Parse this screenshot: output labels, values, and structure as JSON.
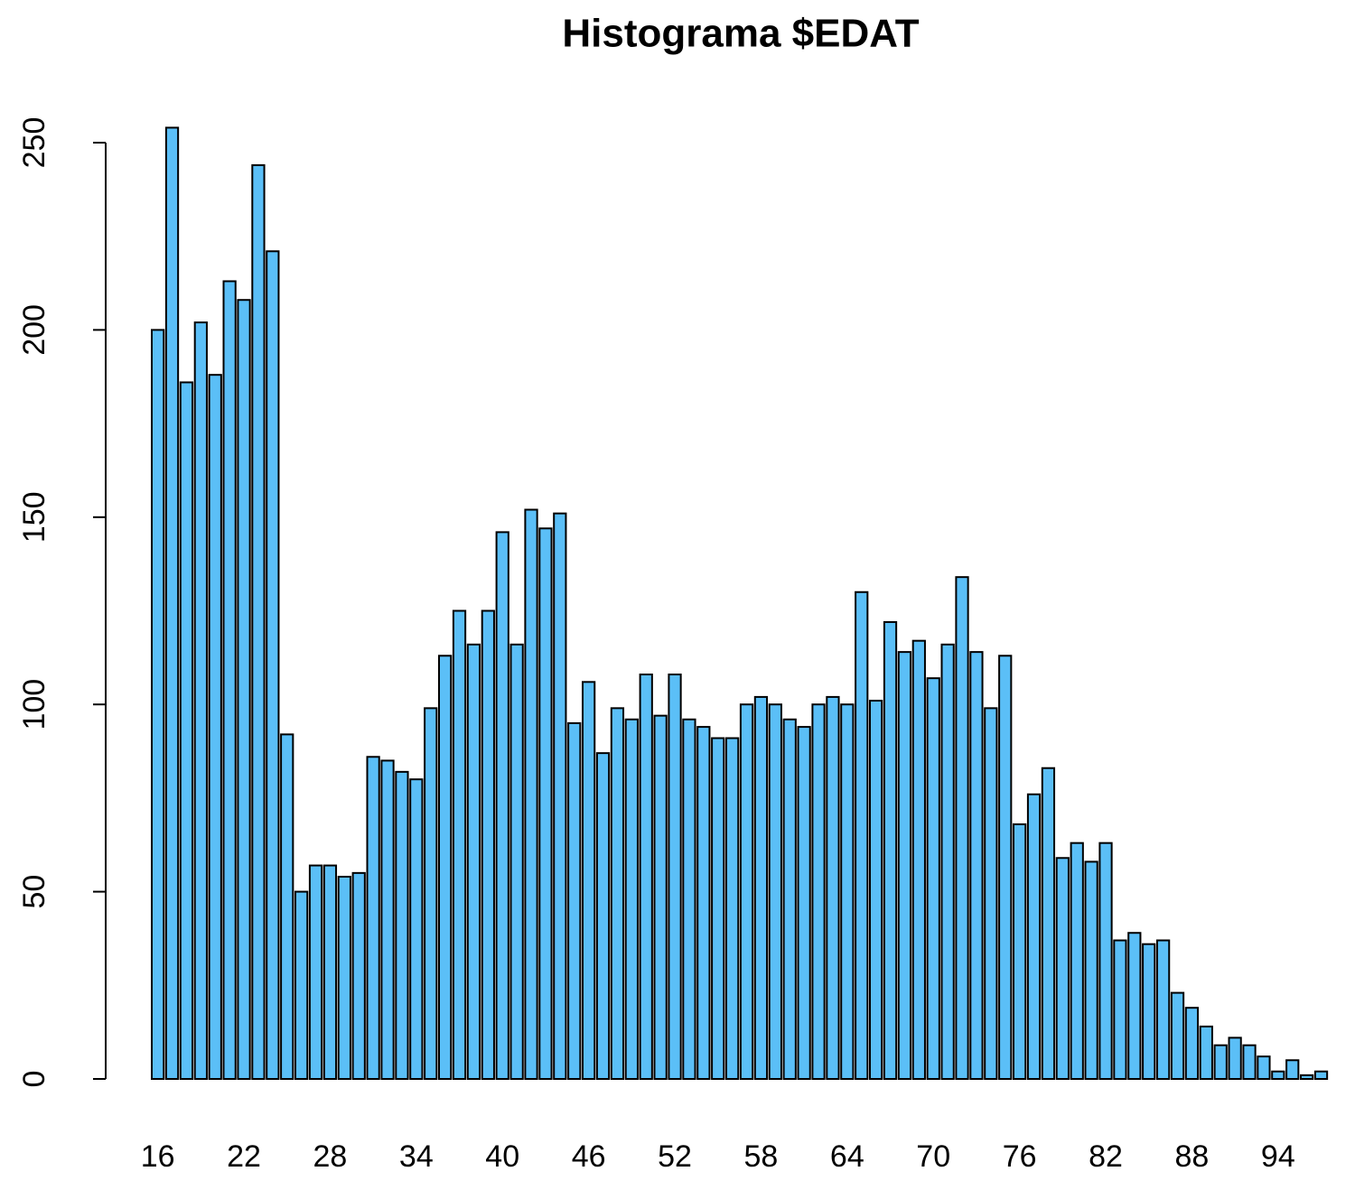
{
  "chart_data": {
    "type": "bar",
    "title": "Histograma $EDAT",
    "categories": [
      "16",
      null,
      null,
      null,
      null,
      null,
      "22",
      null,
      null,
      null,
      null,
      null,
      "28",
      null,
      null,
      null,
      null,
      null,
      "34",
      null,
      null,
      null,
      null,
      null,
      "40",
      null,
      null,
      null,
      null,
      null,
      "46",
      null,
      null,
      null,
      null,
      null,
      "52",
      null,
      null,
      null,
      null,
      null,
      "58",
      null,
      null,
      null,
      null,
      null,
      "64",
      null,
      null,
      null,
      null,
      null,
      "70",
      null,
      null,
      null,
      null,
      null,
      "76",
      null,
      null,
      null,
      null,
      null,
      "82",
      null,
      null,
      null,
      null,
      null,
      "88",
      null,
      null,
      null,
      null,
      null,
      "94",
      null,
      null,
      null
    ],
    "values": [
      200,
      254,
      186,
      202,
      188,
      213,
      208,
      244,
      221,
      92,
      50,
      57,
      57,
      54,
      55,
      86,
      85,
      82,
      80,
      99,
      113,
      125,
      116,
      125,
      146,
      116,
      152,
      147,
      151,
      95,
      106,
      87,
      99,
      96,
      108,
      97,
      108,
      96,
      94,
      91,
      91,
      100,
      102,
      100,
      96,
      94,
      100,
      102,
      100,
      130,
      101,
      122,
      114,
      117,
      107,
      116,
      134,
      114,
      99,
      113,
      68,
      76,
      83,
      59,
      63,
      58,
      63,
      37,
      39,
      36,
      37,
      23,
      19,
      14,
      9,
      11,
      9,
      6,
      2,
      5,
      1,
      2
    ],
    "color": "#5bbff7",
    "ylim": [
      0,
      254
    ],
    "yticks": [
      0,
      50,
      100,
      150,
      200,
      250
    ]
  }
}
